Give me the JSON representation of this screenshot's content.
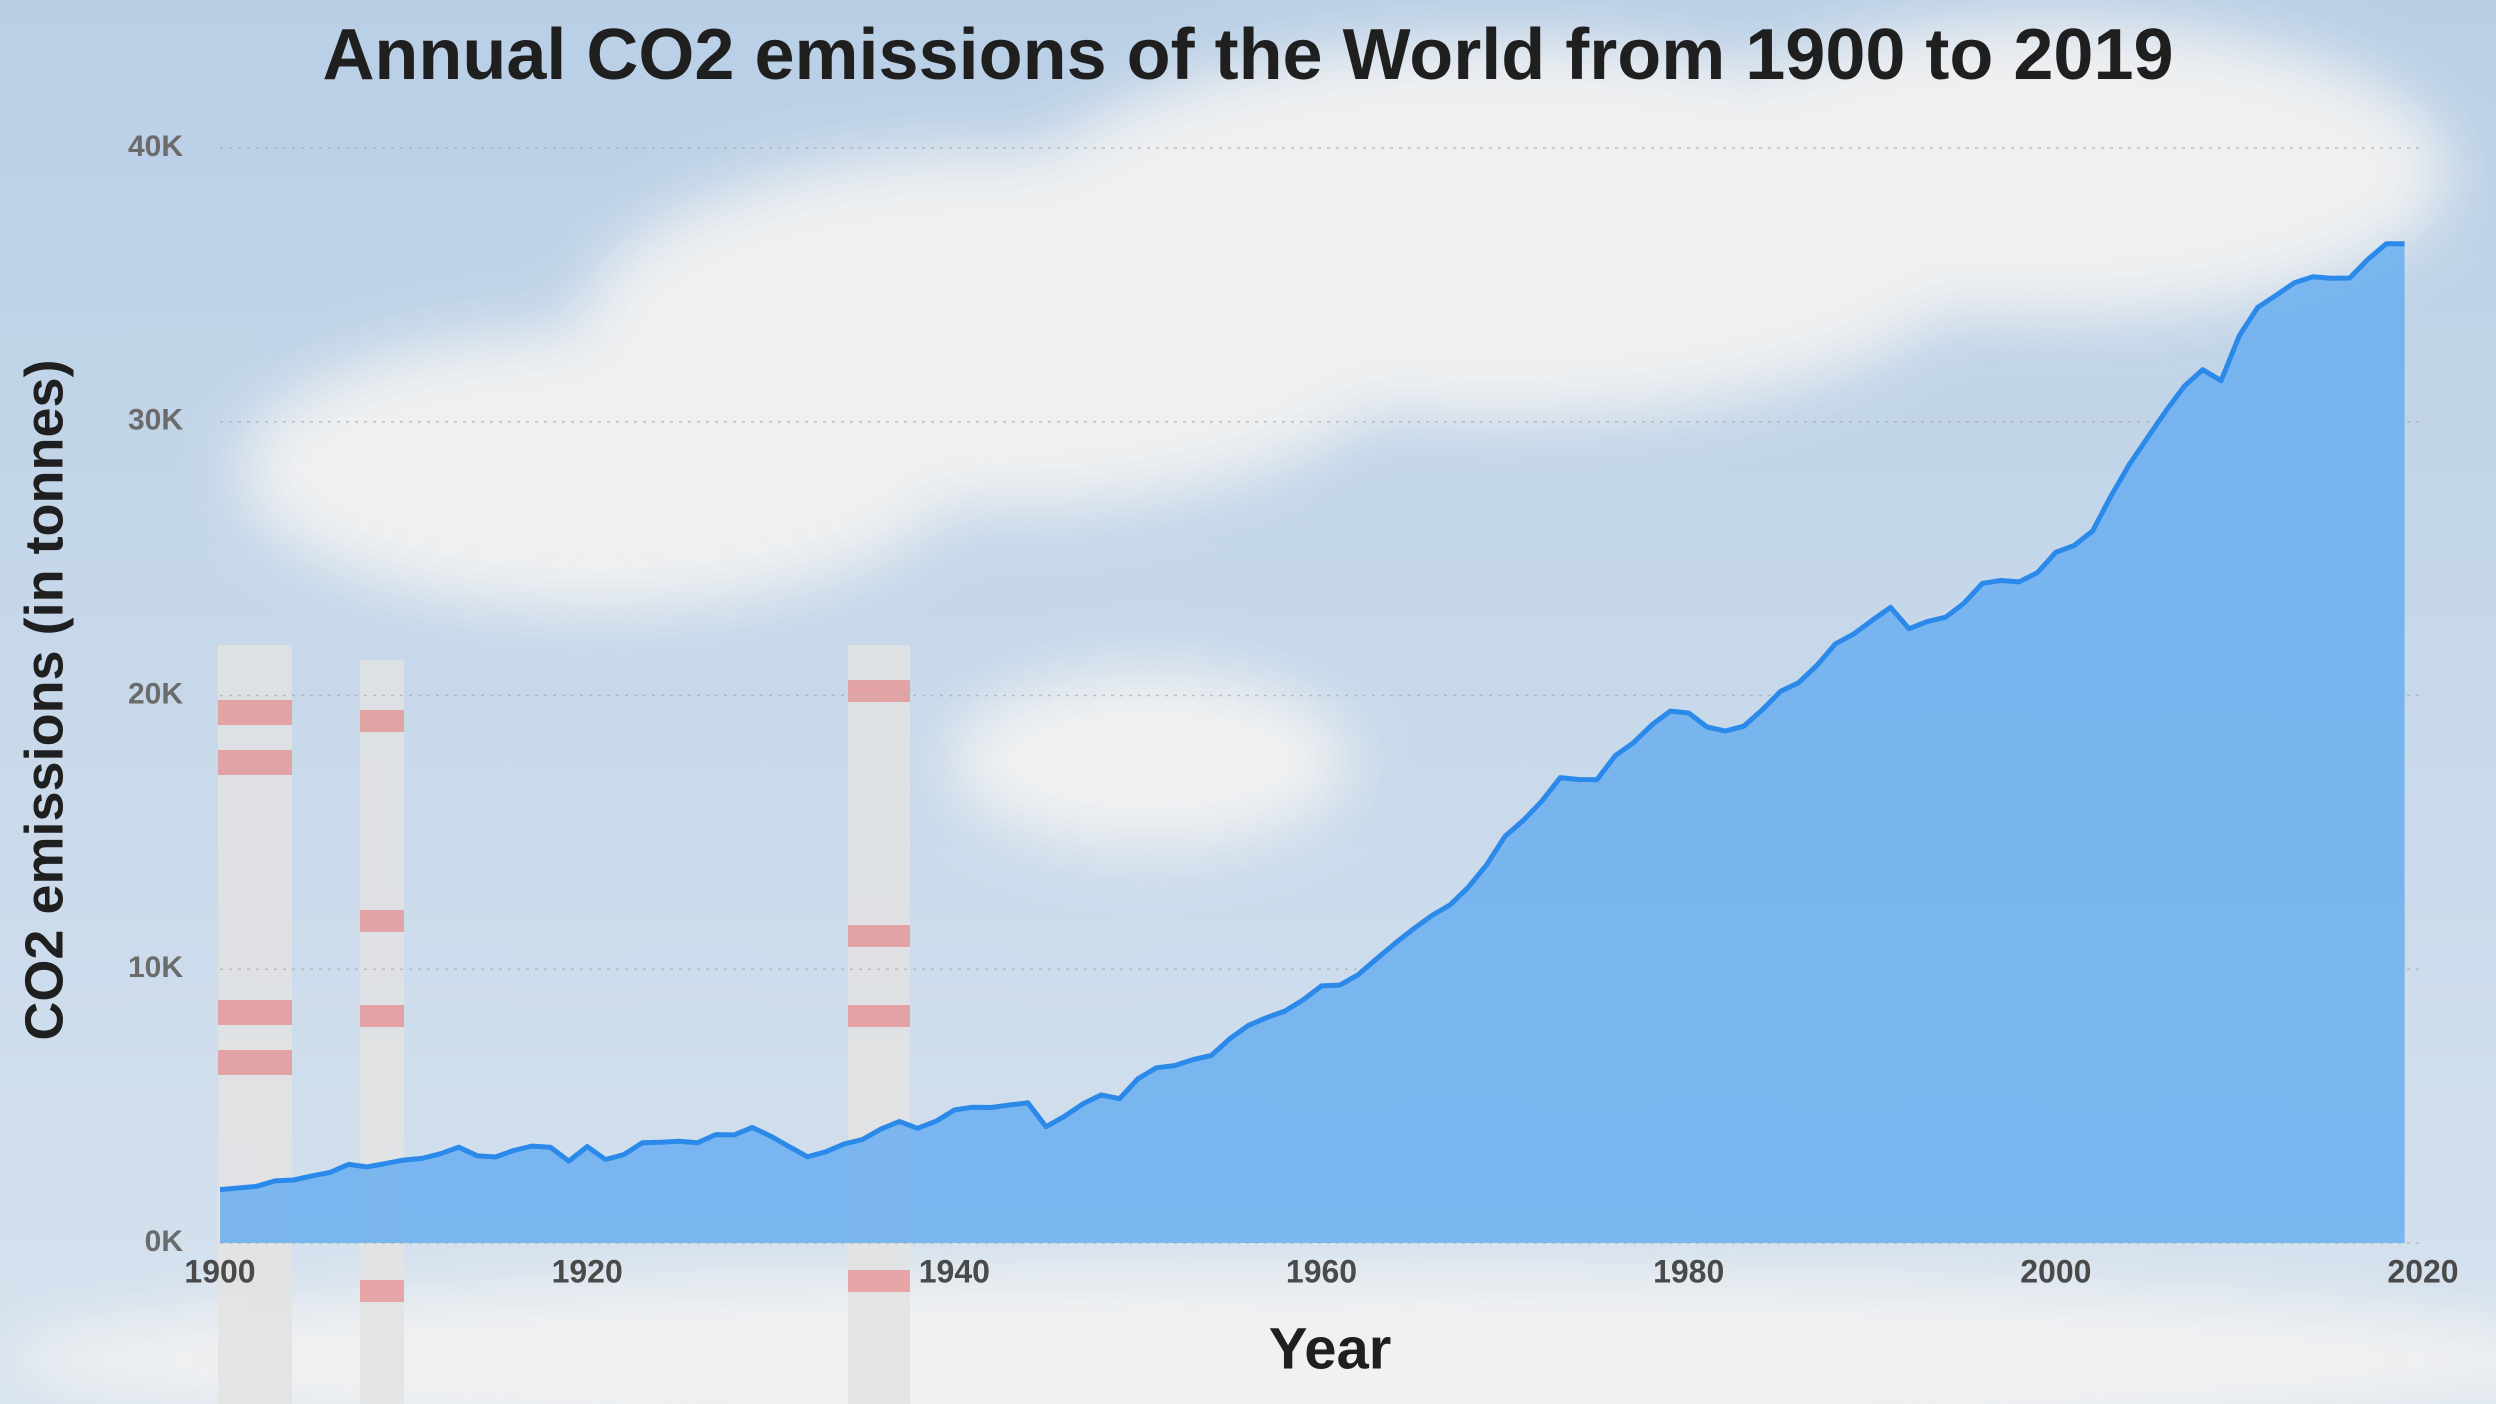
{
  "chart_data": {
    "type": "area",
    "title": "Annual CO2 emissions of the World from 1900 to 2019",
    "x_label": "Year",
    "y_label": "CO2 emissions (in tonnes)",
    "x": [
      1900,
      1901,
      1902,
      1903,
      1904,
      1905,
      1906,
      1907,
      1908,
      1909,
      1910,
      1911,
      1912,
      1913,
      1914,
      1915,
      1916,
      1917,
      1918,
      1919,
      1920,
      1921,
      1922,
      1923,
      1924,
      1925,
      1926,
      1927,
      1928,
      1929,
      1930,
      1931,
      1932,
      1933,
      1934,
      1935,
      1936,
      1937,
      1938,
      1939,
      1940,
      1941,
      1942,
      1943,
      1944,
      1945,
      1946,
      1947,
      1948,
      1949,
      1950,
      1951,
      1952,
      1953,
      1954,
      1955,
      1956,
      1957,
      1958,
      1959,
      1960,
      1961,
      1962,
      1963,
      1964,
      1965,
      1966,
      1967,
      1968,
      1969,
      1970,
      1971,
      1972,
      1973,
      1974,
      1975,
      1976,
      1977,
      1978,
      1979,
      1980,
      1981,
      1982,
      1983,
      1984,
      1985,
      1986,
      1987,
      1988,
      1989,
      1990,
      1991,
      1992,
      1993,
      1994,
      1995,
      1996,
      1997,
      1998,
      1999,
      2000,
      2001,
      2002,
      2003,
      2004,
      2005,
      2006,
      2007,
      2008,
      2009,
      2010,
      2011,
      2012,
      2013,
      2014,
      2015,
      2016,
      2017,
      2018,
      2019
    ],
    "values": [
      1950,
      2010,
      2070,
      2270,
      2300,
      2450,
      2580,
      2870,
      2780,
      2900,
      3030,
      3090,
      3260,
      3500,
      3190,
      3140,
      3380,
      3540,
      3500,
      2990,
      3520,
      3050,
      3230,
      3660,
      3680,
      3720,
      3660,
      3960,
      3950,
      4220,
      3900,
      3520,
      3150,
      3330,
      3620,
      3780,
      4160,
      4440,
      4190,
      4450,
      4860,
      4960,
      4950,
      5040,
      5120,
      4250,
      4630,
      5080,
      5410,
      5270,
      6000,
      6400,
      6480,
      6700,
      6850,
      7460,
      7940,
      8230,
      8470,
      8880,
      9390,
      9420,
      9800,
      10380,
      10940,
      11470,
      11960,
      12350,
      13000,
      13820,
      14860,
      15440,
      16140,
      17000,
      16930,
      16920,
      17800,
      18280,
      18930,
      19430,
      19360,
      18850,
      18700,
      18880,
      19470,
      20150,
      20470,
      21110,
      21890,
      22250,
      22750,
      23220,
      22440,
      22700,
      22860,
      23370,
      24100,
      24200,
      24150,
      24490,
      25230,
      25480,
      26010,
      27280,
      28440,
      29420,
      30400,
      31300,
      31900,
      31500,
      33150,
      34180,
      34620,
      35080,
      35300,
      35240,
      35250,
      35930,
      36500,
      36500
    ],
    "color": "#2b8ae9",
    "fill": "#6aaef0",
    "xlim": [
      1900,
      2020
    ],
    "xticks": [
      1900,
      1920,
      1940,
      1960,
      1980,
      2000,
      2020
    ],
    "ylim": [
      0,
      40000
    ],
    "yticks": [
      {
        "value": 0,
        "label": "0K"
      },
      {
        "value": 10000,
        "label": "10K"
      },
      {
        "value": 20000,
        "label": "20K"
      },
      {
        "value": 30000,
        "label": "30K"
      },
      {
        "value": 40000,
        "label": "40K"
      }
    ],
    "grid": true
  }
}
